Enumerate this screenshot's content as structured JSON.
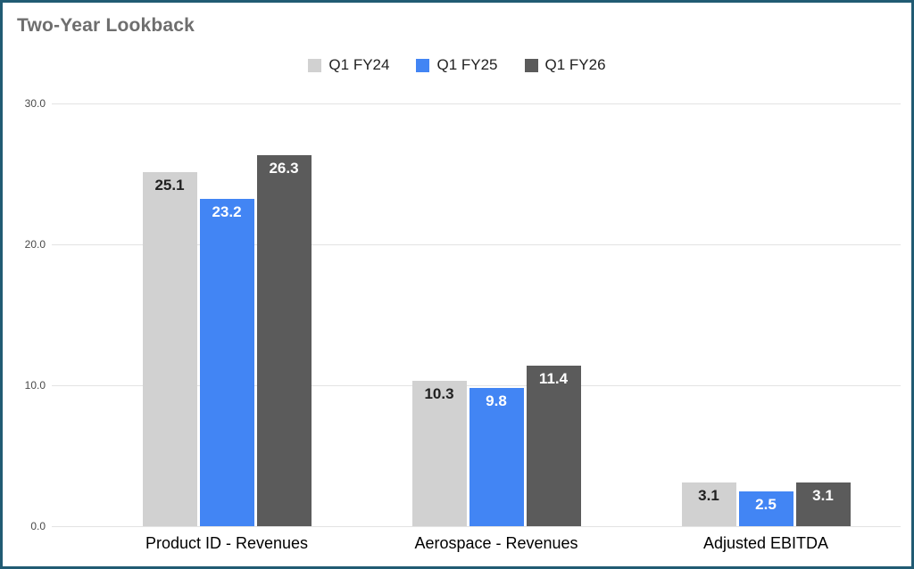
{
  "chart_data": {
    "type": "bar",
    "title": "Two-Year Lookback",
    "categories": [
      "Product ID - Revenues",
      "Aerospace - Revenues",
      "Adjusted EBITDA"
    ],
    "series": [
      {
        "name": "Q1 FY24",
        "color": "#d1d1d1",
        "label_color": "#212121",
        "values": [
          25.1,
          10.3,
          3.1
        ]
      },
      {
        "name": "Q1 FY25",
        "color": "#4285f4",
        "label_color": "#ffffff",
        "values": [
          23.2,
          9.8,
          2.5
        ]
      },
      {
        "name": "Q1 FY26",
        "color": "#5b5b5b",
        "label_color": "#ffffff",
        "values": [
          26.3,
          11.4,
          3.1
        ]
      }
    ],
    "ylim": [
      0,
      30
    ],
    "yticks": [
      0,
      10,
      20,
      30
    ],
    "ytick_labels": [
      "0.0",
      "10.0",
      "20.0",
      "30.0"
    ],
    "legend_position": "top",
    "grid": true
  },
  "colors": {
    "frame_border": "#215b73",
    "grid": "#e3e3e3",
    "title": "#6e6e6e"
  }
}
